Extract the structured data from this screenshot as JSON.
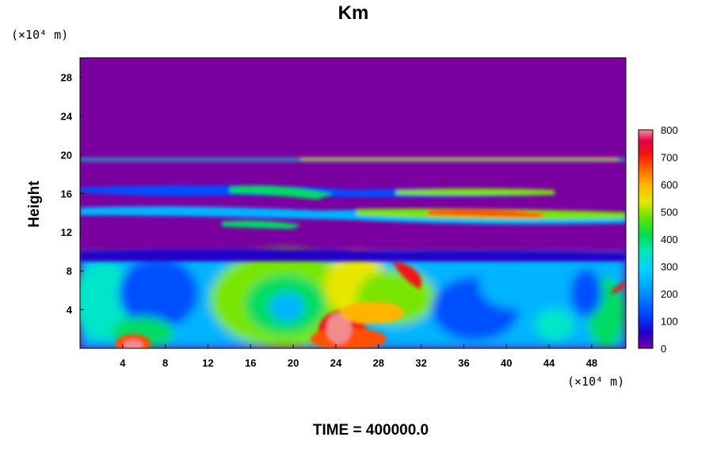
{
  "chart_data": {
    "type": "heatmap",
    "title": "Km",
    "ylabel": "Height",
    "xlabel": "",
    "y_unit": "(×10⁴ m)",
    "x_unit": "(×10⁴ m)",
    "xlim": [
      0,
      51.2
    ],
    "ylim": [
      0,
      30
    ],
    "x_ticks": [
      4,
      8,
      12,
      16,
      20,
      24,
      28,
      32,
      36,
      40,
      44,
      48
    ],
    "y_ticks": [
      4,
      8,
      12,
      16,
      20,
      24,
      28
    ],
    "colorbar": {
      "min": 0,
      "max": 800,
      "ticks": [
        0,
        100,
        200,
        300,
        400,
        500,
        600,
        700,
        800
      ]
    },
    "footer": "TIME = 400000.0",
    "colors": {
      "background": "#7a00a0",
      "palette": [
        "#7a00a0",
        "#2000c8",
        "#0050ff",
        "#00b4ff",
        "#00e6c8",
        "#00dc64",
        "#78e600",
        "#e6e600",
        "#ffb400",
        "#ff5000",
        "#f01414",
        "#f08c8c"
      ]
    }
  }
}
